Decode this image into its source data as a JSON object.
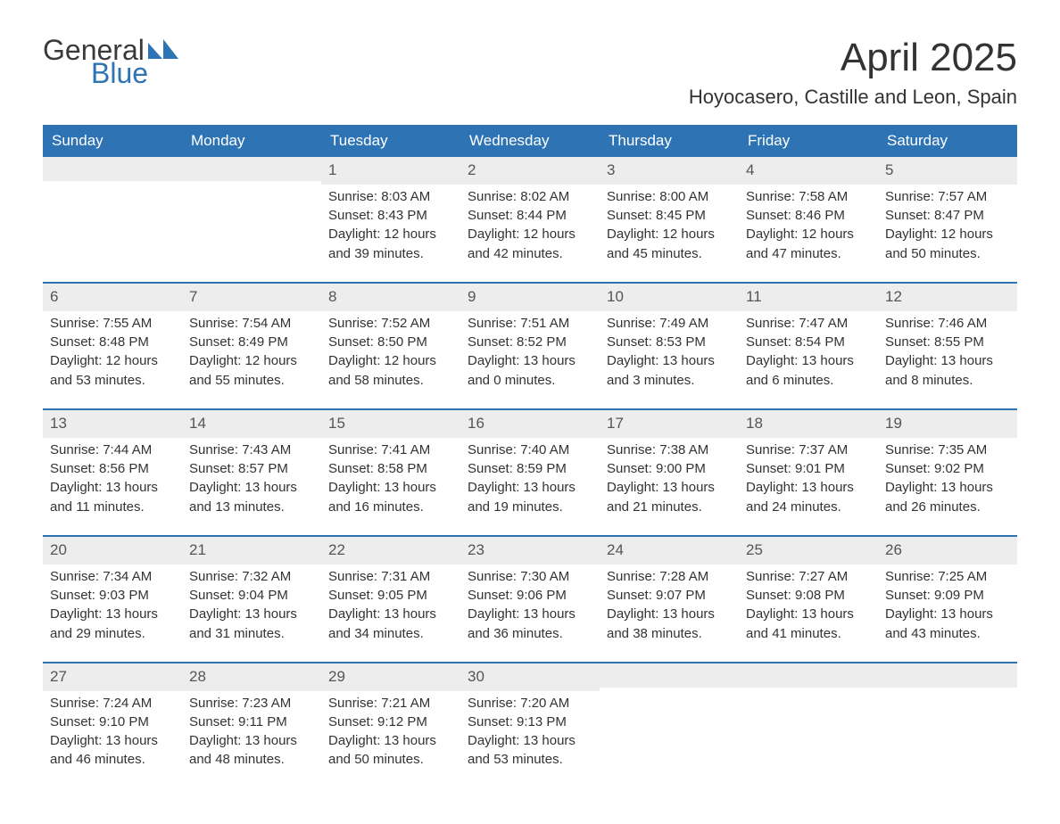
{
  "brand": {
    "top": "General",
    "bottom": "Blue",
    "accent_color": "#2e74b5"
  },
  "title": "April 2025",
  "location": "Hoyocasero, Castille and Leon, Spain",
  "colors": {
    "header_bg": "#2e74b5",
    "header_text": "#ffffff",
    "daynum_bg": "#ededed",
    "daynum_text": "#555555",
    "body_text": "#333333",
    "week_border": "#2e74b5",
    "page_bg": "#ffffff"
  },
  "font": {
    "family": "Arial",
    "title_size_pt": 33,
    "location_size_pt": 17,
    "dow_size_pt": 13,
    "body_size_pt": 11
  },
  "days_of_week": [
    "Sunday",
    "Monday",
    "Tuesday",
    "Wednesday",
    "Thursday",
    "Friday",
    "Saturday"
  ],
  "weeks": [
    [
      null,
      null,
      {
        "n": "1",
        "sunrise": "Sunrise: 8:03 AM",
        "sunset": "Sunset: 8:43 PM",
        "d1": "Daylight: 12 hours",
        "d2": "and 39 minutes."
      },
      {
        "n": "2",
        "sunrise": "Sunrise: 8:02 AM",
        "sunset": "Sunset: 8:44 PM",
        "d1": "Daylight: 12 hours",
        "d2": "and 42 minutes."
      },
      {
        "n": "3",
        "sunrise": "Sunrise: 8:00 AM",
        "sunset": "Sunset: 8:45 PM",
        "d1": "Daylight: 12 hours",
        "d2": "and 45 minutes."
      },
      {
        "n": "4",
        "sunrise": "Sunrise: 7:58 AM",
        "sunset": "Sunset: 8:46 PM",
        "d1": "Daylight: 12 hours",
        "d2": "and 47 minutes."
      },
      {
        "n": "5",
        "sunrise": "Sunrise: 7:57 AM",
        "sunset": "Sunset: 8:47 PM",
        "d1": "Daylight: 12 hours",
        "d2": "and 50 minutes."
      }
    ],
    [
      {
        "n": "6",
        "sunrise": "Sunrise: 7:55 AM",
        "sunset": "Sunset: 8:48 PM",
        "d1": "Daylight: 12 hours",
        "d2": "and 53 minutes."
      },
      {
        "n": "7",
        "sunrise": "Sunrise: 7:54 AM",
        "sunset": "Sunset: 8:49 PM",
        "d1": "Daylight: 12 hours",
        "d2": "and 55 minutes."
      },
      {
        "n": "8",
        "sunrise": "Sunrise: 7:52 AM",
        "sunset": "Sunset: 8:50 PM",
        "d1": "Daylight: 12 hours",
        "d2": "and 58 minutes."
      },
      {
        "n": "9",
        "sunrise": "Sunrise: 7:51 AM",
        "sunset": "Sunset: 8:52 PM",
        "d1": "Daylight: 13 hours",
        "d2": "and 0 minutes."
      },
      {
        "n": "10",
        "sunrise": "Sunrise: 7:49 AM",
        "sunset": "Sunset: 8:53 PM",
        "d1": "Daylight: 13 hours",
        "d2": "and 3 minutes."
      },
      {
        "n": "11",
        "sunrise": "Sunrise: 7:47 AM",
        "sunset": "Sunset: 8:54 PM",
        "d1": "Daylight: 13 hours",
        "d2": "and 6 minutes."
      },
      {
        "n": "12",
        "sunrise": "Sunrise: 7:46 AM",
        "sunset": "Sunset: 8:55 PM",
        "d1": "Daylight: 13 hours",
        "d2": "and 8 minutes."
      }
    ],
    [
      {
        "n": "13",
        "sunrise": "Sunrise: 7:44 AM",
        "sunset": "Sunset: 8:56 PM",
        "d1": "Daylight: 13 hours",
        "d2": "and 11 minutes."
      },
      {
        "n": "14",
        "sunrise": "Sunrise: 7:43 AM",
        "sunset": "Sunset: 8:57 PM",
        "d1": "Daylight: 13 hours",
        "d2": "and 13 minutes."
      },
      {
        "n": "15",
        "sunrise": "Sunrise: 7:41 AM",
        "sunset": "Sunset: 8:58 PM",
        "d1": "Daylight: 13 hours",
        "d2": "and 16 minutes."
      },
      {
        "n": "16",
        "sunrise": "Sunrise: 7:40 AM",
        "sunset": "Sunset: 8:59 PM",
        "d1": "Daylight: 13 hours",
        "d2": "and 19 minutes."
      },
      {
        "n": "17",
        "sunrise": "Sunrise: 7:38 AM",
        "sunset": "Sunset: 9:00 PM",
        "d1": "Daylight: 13 hours",
        "d2": "and 21 minutes."
      },
      {
        "n": "18",
        "sunrise": "Sunrise: 7:37 AM",
        "sunset": "Sunset: 9:01 PM",
        "d1": "Daylight: 13 hours",
        "d2": "and 24 minutes."
      },
      {
        "n": "19",
        "sunrise": "Sunrise: 7:35 AM",
        "sunset": "Sunset: 9:02 PM",
        "d1": "Daylight: 13 hours",
        "d2": "and 26 minutes."
      }
    ],
    [
      {
        "n": "20",
        "sunrise": "Sunrise: 7:34 AM",
        "sunset": "Sunset: 9:03 PM",
        "d1": "Daylight: 13 hours",
        "d2": "and 29 minutes."
      },
      {
        "n": "21",
        "sunrise": "Sunrise: 7:32 AM",
        "sunset": "Sunset: 9:04 PM",
        "d1": "Daylight: 13 hours",
        "d2": "and 31 minutes."
      },
      {
        "n": "22",
        "sunrise": "Sunrise: 7:31 AM",
        "sunset": "Sunset: 9:05 PM",
        "d1": "Daylight: 13 hours",
        "d2": "and 34 minutes."
      },
      {
        "n": "23",
        "sunrise": "Sunrise: 7:30 AM",
        "sunset": "Sunset: 9:06 PM",
        "d1": "Daylight: 13 hours",
        "d2": "and 36 minutes."
      },
      {
        "n": "24",
        "sunrise": "Sunrise: 7:28 AM",
        "sunset": "Sunset: 9:07 PM",
        "d1": "Daylight: 13 hours",
        "d2": "and 38 minutes."
      },
      {
        "n": "25",
        "sunrise": "Sunrise: 7:27 AM",
        "sunset": "Sunset: 9:08 PM",
        "d1": "Daylight: 13 hours",
        "d2": "and 41 minutes."
      },
      {
        "n": "26",
        "sunrise": "Sunrise: 7:25 AM",
        "sunset": "Sunset: 9:09 PM",
        "d1": "Daylight: 13 hours",
        "d2": "and 43 minutes."
      }
    ],
    [
      {
        "n": "27",
        "sunrise": "Sunrise: 7:24 AM",
        "sunset": "Sunset: 9:10 PM",
        "d1": "Daylight: 13 hours",
        "d2": "and 46 minutes."
      },
      {
        "n": "28",
        "sunrise": "Sunrise: 7:23 AM",
        "sunset": "Sunset: 9:11 PM",
        "d1": "Daylight: 13 hours",
        "d2": "and 48 minutes."
      },
      {
        "n": "29",
        "sunrise": "Sunrise: 7:21 AM",
        "sunset": "Sunset: 9:12 PM",
        "d1": "Daylight: 13 hours",
        "d2": "and 50 minutes."
      },
      {
        "n": "30",
        "sunrise": "Sunrise: 7:20 AM",
        "sunset": "Sunset: 9:13 PM",
        "d1": "Daylight: 13 hours",
        "d2": "and 53 minutes."
      },
      null,
      null,
      null
    ]
  ]
}
